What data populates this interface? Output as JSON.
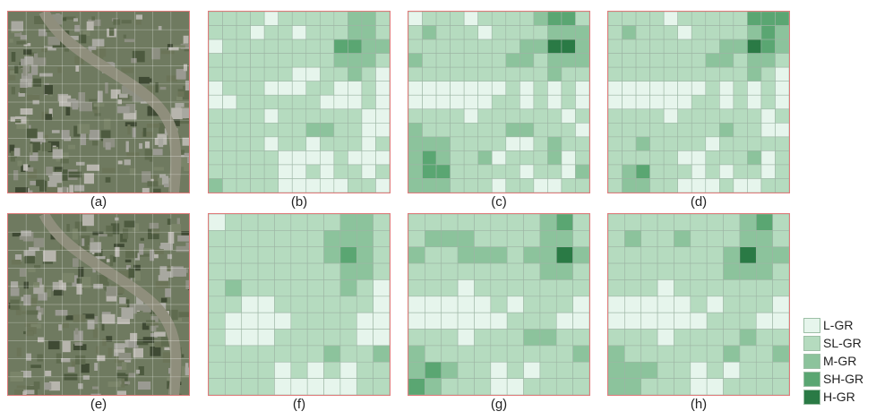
{
  "captions": [
    "(a)",
    "(b)",
    "(c)",
    "(d)",
    "(e)",
    "(f)",
    "(g)",
    "(h)"
  ],
  "legend": [
    {
      "label": "L-GR",
      "level": 0,
      "color": "#e6f5ec"
    },
    {
      "label": "SL-GR",
      "level": 1,
      "color": "#b5dbbf"
    },
    {
      "label": "M-GR",
      "level": 2,
      "color": "#8cc39c"
    },
    {
      "label": "SH-GR",
      "level": 3,
      "color": "#5aa672"
    },
    {
      "label": "H-GR",
      "level": 4,
      "color": "#2a7a45"
    }
  ],
  "grids": {
    "b": [
      [
        1,
        1,
        1,
        1,
        0,
        1,
        1,
        1,
        1,
        1,
        2,
        2,
        1
      ],
      [
        1,
        1,
        1,
        0,
        1,
        1,
        0,
        1,
        1,
        1,
        2,
        2,
        1
      ],
      [
        0,
        1,
        1,
        1,
        1,
        1,
        1,
        1,
        1,
        3,
        3,
        2,
        2
      ],
      [
        1,
        1,
        1,
        1,
        1,
        1,
        1,
        1,
        1,
        2,
        2,
        2,
        1
      ],
      [
        1,
        1,
        1,
        1,
        1,
        1,
        0,
        0,
        1,
        1,
        2,
        1,
        0
      ],
      [
        0,
        1,
        1,
        1,
        0,
        0,
        0,
        1,
        1,
        0,
        0,
        1,
        0
      ],
      [
        0,
        0,
        1,
        1,
        1,
        1,
        1,
        1,
        0,
        0,
        0,
        1,
        0
      ],
      [
        1,
        1,
        1,
        1,
        0,
        1,
        1,
        1,
        1,
        1,
        1,
        0,
        0
      ],
      [
        1,
        1,
        1,
        1,
        1,
        1,
        1,
        2,
        2,
        1,
        1,
        0,
        0
      ],
      [
        1,
        1,
        1,
        1,
        0,
        1,
        1,
        0,
        1,
        1,
        1,
        0,
        1
      ],
      [
        1,
        1,
        1,
        1,
        1,
        0,
        0,
        0,
        0,
        1,
        0,
        0,
        0
      ],
      [
        1,
        1,
        1,
        1,
        1,
        0,
        0,
        1,
        0,
        1,
        1,
        0,
        1
      ],
      [
        2,
        1,
        1,
        1,
        1,
        0,
        0,
        0,
        0,
        0,
        1,
        1,
        0
      ]
    ],
    "c": [
      [
        0,
        1,
        1,
        1,
        0,
        1,
        1,
        1,
        1,
        2,
        3,
        3,
        1
      ],
      [
        1,
        2,
        1,
        1,
        1,
        0,
        1,
        1,
        1,
        1,
        2,
        2,
        2
      ],
      [
        1,
        1,
        1,
        1,
        1,
        1,
        1,
        1,
        2,
        2,
        4,
        4,
        2
      ],
      [
        2,
        1,
        1,
        1,
        1,
        1,
        1,
        2,
        2,
        1,
        2,
        2,
        2
      ],
      [
        1,
        1,
        1,
        1,
        1,
        1,
        1,
        1,
        1,
        1,
        2,
        1,
        1
      ],
      [
        0,
        0,
        0,
        0,
        0,
        0,
        0,
        1,
        0,
        1,
        0,
        1,
        0
      ],
      [
        0,
        0,
        0,
        0,
        0,
        0,
        1,
        1,
        0,
        1,
        0,
        1,
        0
      ],
      [
        1,
        1,
        1,
        1,
        0,
        1,
        1,
        1,
        1,
        1,
        1,
        0,
        1
      ],
      [
        2,
        1,
        1,
        1,
        1,
        1,
        1,
        2,
        2,
        1,
        1,
        1,
        0
      ],
      [
        2,
        2,
        2,
        1,
        1,
        1,
        1,
        0,
        0,
        1,
        2,
        1,
        1
      ],
      [
        2,
        3,
        2,
        1,
        1,
        2,
        0,
        1,
        1,
        1,
        2,
        0,
        1
      ],
      [
        2,
        3,
        3,
        1,
        1,
        1,
        1,
        1,
        0,
        1,
        1,
        0,
        2
      ],
      [
        2,
        2,
        2,
        1,
        1,
        1,
        0,
        1,
        1,
        0,
        0,
        1,
        1
      ]
    ],
    "d": [
      [
        1,
        1,
        1,
        1,
        0,
        1,
        1,
        1,
        1,
        1,
        3,
        3,
        3
      ],
      [
        1,
        2,
        1,
        1,
        1,
        0,
        1,
        1,
        1,
        1,
        2,
        3,
        2
      ],
      [
        1,
        1,
        1,
        1,
        1,
        1,
        1,
        1,
        2,
        2,
        4,
        3,
        2
      ],
      [
        1,
        1,
        1,
        1,
        1,
        1,
        1,
        2,
        2,
        1,
        2,
        2,
        1
      ],
      [
        1,
        1,
        1,
        1,
        1,
        1,
        1,
        1,
        1,
        1,
        2,
        1,
        0
      ],
      [
        0,
        0,
        0,
        0,
        0,
        0,
        0,
        1,
        0,
        1,
        0,
        1,
        0
      ],
      [
        0,
        0,
        0,
        0,
        0,
        0,
        1,
        1,
        0,
        1,
        0,
        1,
        0
      ],
      [
        1,
        1,
        1,
        1,
        0,
        1,
        1,
        1,
        1,
        1,
        1,
        0,
        1
      ],
      [
        1,
        1,
        1,
        1,
        1,
        1,
        1,
        1,
        2,
        1,
        1,
        0,
        0
      ],
      [
        1,
        1,
        2,
        1,
        1,
        1,
        1,
        0,
        1,
        1,
        1,
        1,
        1
      ],
      [
        1,
        1,
        1,
        1,
        1,
        0,
        0,
        1,
        1,
        1,
        2,
        0,
        1
      ],
      [
        1,
        2,
        3,
        1,
        1,
        1,
        0,
        1,
        0,
        1,
        1,
        0,
        1
      ],
      [
        1,
        2,
        2,
        1,
        1,
        0,
        0,
        0,
        1,
        0,
        0,
        1,
        1
      ]
    ],
    "f": [
      [
        0,
        1,
        1,
        1,
        1,
        1,
        1,
        1,
        2,
        2,
        1
      ],
      [
        1,
        1,
        1,
        1,
        1,
        1,
        1,
        2,
        2,
        2,
        1
      ],
      [
        1,
        1,
        1,
        1,
        1,
        1,
        1,
        2,
        3,
        2,
        1
      ],
      [
        1,
        1,
        1,
        1,
        1,
        1,
        1,
        1,
        2,
        2,
        1
      ],
      [
        1,
        2,
        1,
        1,
        1,
        1,
        1,
        1,
        2,
        1,
        0
      ],
      [
        1,
        1,
        0,
        0,
        1,
        1,
        1,
        1,
        1,
        1,
        0
      ],
      [
        1,
        0,
        0,
        0,
        0,
        1,
        1,
        1,
        1,
        0,
        0
      ],
      [
        1,
        0,
        0,
        0,
        1,
        1,
        1,
        1,
        1,
        0,
        0
      ],
      [
        1,
        1,
        1,
        1,
        1,
        1,
        1,
        2,
        1,
        1,
        2
      ],
      [
        1,
        1,
        1,
        1,
        0,
        1,
        0,
        1,
        0,
        1,
        1
      ],
      [
        1,
        1,
        1,
        1,
        0,
        0,
        0,
        0,
        0,
        1,
        1
      ]
    ],
    "g": [
      [
        1,
        1,
        1,
        1,
        1,
        1,
        1,
        1,
        2,
        3,
        1
      ],
      [
        1,
        2,
        2,
        2,
        1,
        1,
        1,
        1,
        2,
        2,
        1
      ],
      [
        2,
        1,
        1,
        2,
        2,
        2,
        1,
        2,
        2,
        4,
        2
      ],
      [
        1,
        1,
        1,
        1,
        1,
        1,
        1,
        1,
        2,
        2,
        1
      ],
      [
        1,
        1,
        1,
        0,
        1,
        1,
        1,
        1,
        1,
        1,
        1
      ],
      [
        0,
        0,
        0,
        0,
        0,
        1,
        0,
        1,
        1,
        1,
        0
      ],
      [
        0,
        0,
        0,
        0,
        0,
        0,
        1,
        1,
        1,
        0,
        0
      ],
      [
        1,
        1,
        1,
        0,
        1,
        1,
        1,
        2,
        2,
        1,
        1
      ],
      [
        2,
        1,
        1,
        1,
        1,
        1,
        1,
        1,
        1,
        1,
        2
      ],
      [
        2,
        3,
        2,
        1,
        1,
        0,
        1,
        0,
        1,
        1,
        1
      ],
      [
        3,
        2,
        1,
        1,
        1,
        0,
        0,
        1,
        1,
        1,
        1
      ]
    ],
    "h": [
      [
        1,
        1,
        1,
        1,
        1,
        1,
        1,
        1,
        2,
        3,
        1
      ],
      [
        1,
        2,
        1,
        1,
        2,
        1,
        1,
        1,
        2,
        2,
        1
      ],
      [
        1,
        1,
        1,
        1,
        1,
        1,
        1,
        2,
        4,
        2,
        2
      ],
      [
        1,
        1,
        1,
        1,
        1,
        1,
        1,
        2,
        2,
        2,
        1
      ],
      [
        1,
        1,
        1,
        0,
        1,
        1,
        1,
        1,
        1,
        1,
        1
      ],
      [
        0,
        0,
        0,
        0,
        0,
        1,
        0,
        1,
        1,
        1,
        0
      ],
      [
        0,
        0,
        0,
        0,
        0,
        0,
        1,
        1,
        1,
        0,
        0
      ],
      [
        1,
        1,
        1,
        0,
        1,
        1,
        1,
        1,
        2,
        1,
        1
      ],
      [
        2,
        1,
        1,
        1,
        1,
        1,
        1,
        2,
        1,
        1,
        2
      ],
      [
        2,
        2,
        2,
        1,
        1,
        0,
        1,
        0,
        1,
        1,
        1
      ],
      [
        2,
        2,
        1,
        1,
        1,
        0,
        0,
        1,
        1,
        1,
        1
      ]
    ]
  }
}
